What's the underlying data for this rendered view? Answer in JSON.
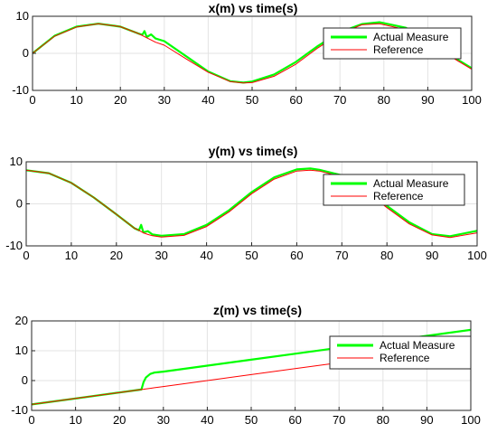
{
  "chart_data": [
    {
      "type": "line",
      "title": "x(m) vs time(s)",
      "xlabel": "",
      "ylabel": "",
      "xlim": [
        0,
        100
      ],
      "ylim": [
        -10,
        10
      ],
      "xticks": [
        0,
        10,
        20,
        30,
        40,
        50,
        60,
        70,
        80,
        90,
        100
      ],
      "yticks": [
        -10,
        0,
        10
      ],
      "grid": true,
      "legend_position": "top-right",
      "x": [
        0,
        5,
        10,
        15,
        20,
        24,
        25,
        25.5,
        26,
        27,
        28,
        30,
        35,
        40,
        45,
        48,
        50,
        55,
        60,
        65,
        70,
        75,
        79,
        85,
        90,
        95,
        100
      ],
      "series": [
        {
          "name": "Actual Measure",
          "color": "#00ff00",
          "values": [
            0,
            4.7,
            7.2,
            8.0,
            7.2,
            5.4,
            5.0,
            6.0,
            4.4,
            5.1,
            4.0,
            3.3,
            -0.8,
            -4.9,
            -7.5,
            -7.9,
            -7.6,
            -5.7,
            -2.3,
            2.0,
            5.7,
            7.9,
            8.4,
            6.9,
            3.5,
            -0.4,
            -4.0
          ]
        },
        {
          "name": "Reference",
          "color": "#ff0000",
          "values": [
            0,
            4.6,
            7.1,
            8.0,
            7.2,
            5.4,
            4.8,
            4.5,
            4.2,
            3.6,
            3.0,
            2.2,
            -1.5,
            -5.1,
            -7.6,
            -8.0,
            -7.9,
            -6.2,
            -2.9,
            1.5,
            5.3,
            7.7,
            8.0,
            6.4,
            3.1,
            -0.7,
            -4.3
          ]
        }
      ]
    },
    {
      "type": "line",
      "title": "y(m) vs time(s)",
      "xlabel": "",
      "ylabel": "",
      "xlim": [
        0,
        100
      ],
      "ylim": [
        -10,
        10
      ],
      "xticks": [
        0,
        10,
        20,
        30,
        40,
        50,
        60,
        70,
        80,
        90,
        100
      ],
      "yticks": [
        -10,
        0,
        10
      ],
      "grid": true,
      "legend_position": "right",
      "x": [
        0,
        5,
        10,
        15,
        20,
        24,
        25,
        25.5,
        26,
        27,
        28,
        30,
        35,
        40,
        45,
        50,
        55,
        60,
        63,
        65,
        70,
        75,
        80,
        85,
        90,
        94,
        100
      ],
      "series": [
        {
          "name": "Actual Measure",
          "color": "#00ff00",
          "values": [
            8.0,
            7.3,
            5.0,
            1.5,
            -2.5,
            -5.8,
            -6.3,
            -5.0,
            -6.8,
            -6.5,
            -7.3,
            -7.6,
            -7.2,
            -5.0,
            -1.5,
            2.8,
            6.3,
            8.2,
            8.4,
            8.1,
            6.8,
            3.6,
            -0.5,
            -4.4,
            -7.2,
            -7.7,
            -6.4
          ]
        },
        {
          "name": "Reference",
          "color": "#ff0000",
          "values": [
            8.0,
            7.3,
            5.0,
            1.5,
            -2.5,
            -5.8,
            -6.3,
            -6.6,
            -6.9,
            -7.3,
            -7.6,
            -7.9,
            -7.5,
            -5.4,
            -1.9,
            2.4,
            5.9,
            7.8,
            8.0,
            7.8,
            6.4,
            3.2,
            -0.9,
            -4.8,
            -7.4,
            -8.0,
            -6.9
          ]
        }
      ]
    },
    {
      "type": "line",
      "title": "z(m) vs time(s)",
      "xlabel": "",
      "ylabel": "",
      "xlim": [
        0,
        100
      ],
      "ylim": [
        -10,
        20
      ],
      "xticks": [
        0,
        10,
        20,
        30,
        40,
        50,
        60,
        70,
        80,
        90,
        100
      ],
      "yticks": [
        -10,
        0,
        10,
        20
      ],
      "grid": true,
      "legend_position": "right",
      "x": [
        0,
        10,
        20,
        25,
        25.5,
        26,
        27,
        28,
        30,
        40,
        50,
        60,
        70,
        80,
        90,
        100
      ],
      "series": [
        {
          "name": "Actual Measure",
          "color": "#00ff00",
          "values": [
            -8,
            -6,
            -4,
            -3,
            -0.5,
            1.0,
            2.2,
            2.7,
            3.0,
            5.0,
            7.0,
            9.0,
            11.0,
            13.0,
            15.0,
            17.0
          ]
        },
        {
          "name": "Reference",
          "color": "#ff0000",
          "values": [
            -8,
            -6,
            -4,
            -3,
            -2.9,
            -2.8,
            -2.6,
            -2.4,
            -2.0,
            0,
            2,
            4,
            6,
            8,
            10,
            12
          ]
        }
      ]
    }
  ]
}
